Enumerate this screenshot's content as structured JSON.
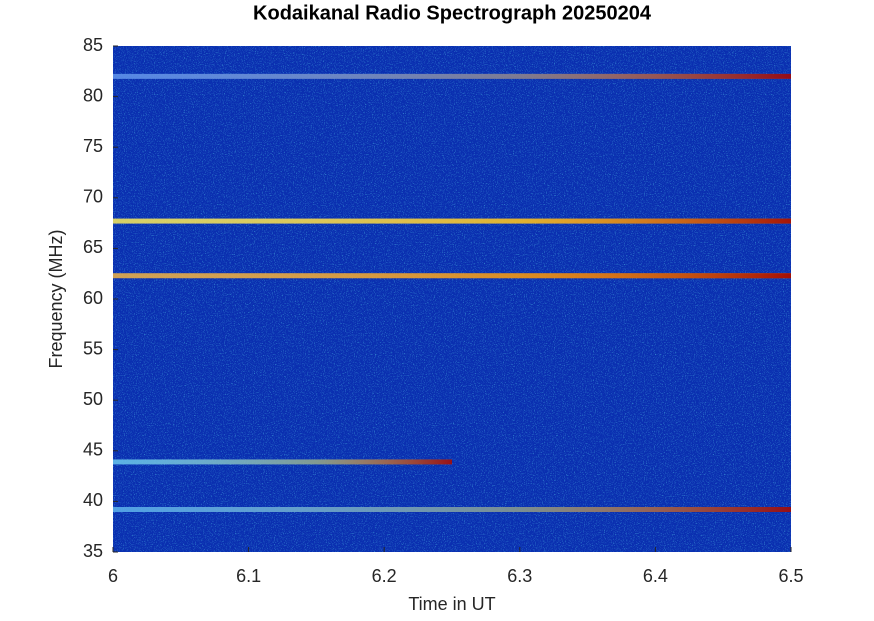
{
  "chart_data": {
    "type": "heatmap",
    "title": "Kodaikanal Radio Spectrograph  20250204",
    "xlabel": "Time in UT",
    "ylabel": "Frequency (MHz)",
    "xlim": [
      6,
      6.5
    ],
    "xticks": [
      6,
      6.1,
      6.2,
      6.3,
      6.4,
      6.5
    ],
    "ylim": [
      35,
      85
    ],
    "yticks": [
      35,
      40,
      45,
      50,
      55,
      60,
      65,
      70,
      75,
      80,
      85
    ],
    "background": "#0a2fb0",
    "lines": [
      {
        "y": 82,
        "x": [
          6,
          6.5
        ],
        "color": "#3f7de8"
      },
      {
        "y": 67.7,
        "x": [
          6,
          6.5
        ],
        "color": "#f2e23a"
      },
      {
        "y": 62.3,
        "x": [
          6,
          6.5
        ],
        "color": "#e8a020"
      },
      {
        "y": 43.9,
        "x": [
          6,
          6.25
        ],
        "color": "#47b6e8"
      },
      {
        "y": 39.2,
        "x": [
          6,
          6.5
        ],
        "color": "#3aa0e8"
      }
    ]
  }
}
